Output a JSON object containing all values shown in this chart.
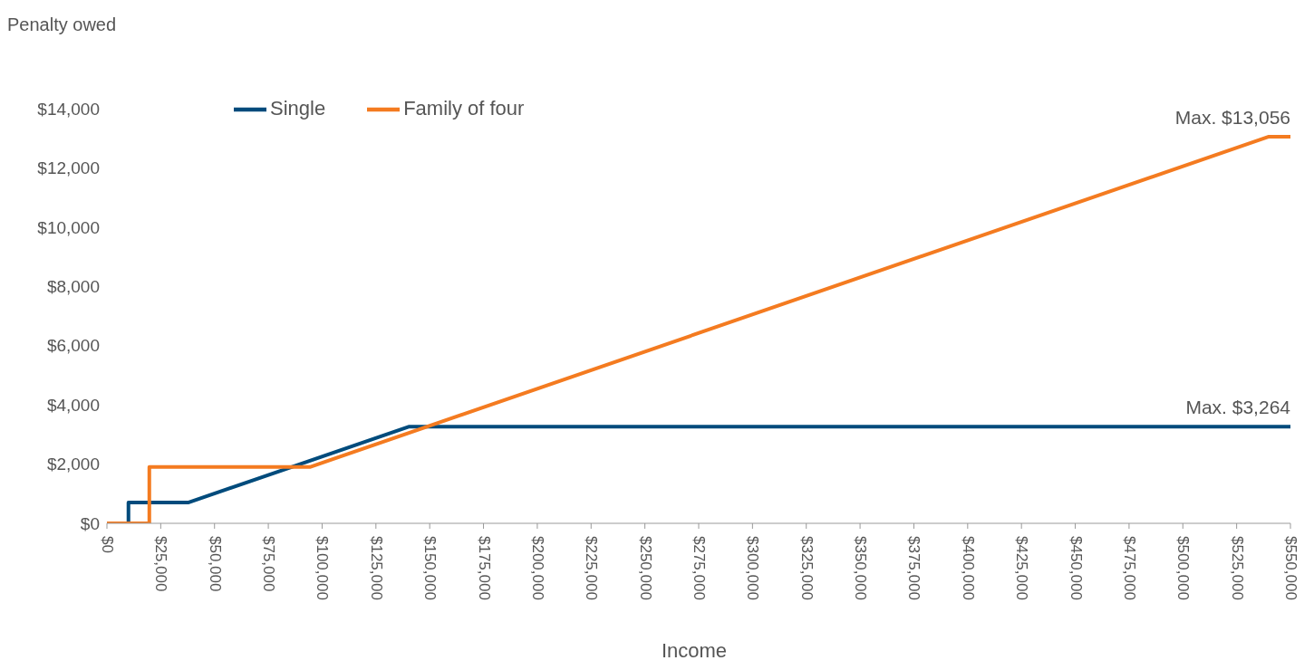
{
  "chart_data": {
    "type": "line",
    "xlabel": "Income",
    "ylabel": "Penalty owed",
    "series": [
      {
        "name": "Single",
        "color": "#004b7c",
        "x": [
          10000,
          10000,
          37700,
          140500,
          550000
        ],
        "values": [
          0,
          700,
          700,
          3264,
          3264
        ]
      },
      {
        "name": "Family of four",
        "color": "#f47b20",
        "x": [
          0,
          19700,
          19700,
          94300,
          540000,
          550000
        ],
        "values": [
          0,
          0,
          1900,
          1900,
          13056,
          13056
        ]
      }
    ],
    "xlim": [
      0,
      550000
    ],
    "xticks": [
      {
        "value": 0,
        "label": "$0"
      },
      {
        "value": 25000,
        "label": "$25,000"
      },
      {
        "value": 50000,
        "label": "$50,000"
      },
      {
        "value": 75000,
        "label": "$75,000"
      },
      {
        "value": 100000,
        "label": "$100,000"
      },
      {
        "value": 125000,
        "label": "$125,000"
      },
      {
        "value": 150000,
        "label": "$150,000"
      },
      {
        "value": 175000,
        "label": "$175,000"
      },
      {
        "value": 200000,
        "label": "$200,000"
      },
      {
        "value": 225000,
        "label": "$225,000"
      },
      {
        "value": 250000,
        "label": "$250,000"
      },
      {
        "value": 275000,
        "label": "$275,000"
      },
      {
        "value": 300000,
        "label": "$300,000"
      },
      {
        "value": 325000,
        "label": "$325,000"
      },
      {
        "value": 350000,
        "label": "$350,000"
      },
      {
        "value": 375000,
        "label": "$375,000"
      },
      {
        "value": 400000,
        "label": "$400,000"
      },
      {
        "value": 425000,
        "label": "$425,000"
      },
      {
        "value": 450000,
        "label": "$450,000"
      },
      {
        "value": 475000,
        "label": "$475,000"
      },
      {
        "value": 500000,
        "label": "$500,000"
      },
      {
        "value": 525000,
        "label": "$525,000"
      },
      {
        "value": 550000,
        "label": "$550,000"
      }
    ],
    "ylim": [
      0,
      14000
    ],
    "yticks": [
      {
        "value": 0,
        "label": "$0"
      },
      {
        "value": 2000,
        "label": "$2,000"
      },
      {
        "value": 4000,
        "label": "$4,000"
      },
      {
        "value": 6000,
        "label": "$6,000"
      },
      {
        "value": 8000,
        "label": "$8,000"
      },
      {
        "value": 10000,
        "label": "$10,000"
      },
      {
        "value": 12000,
        "label": "$12,000"
      },
      {
        "value": 14000,
        "label": "$14,000"
      }
    ],
    "annotations": [
      {
        "text": "Max. $13,056",
        "x": 550000,
        "y": 13056
      },
      {
        "text": "Max. $3,264",
        "x": 550000,
        "y": 3264
      }
    ],
    "legend": "top left",
    "grid": false,
    "marker": "none",
    "line_style": "solid"
  }
}
